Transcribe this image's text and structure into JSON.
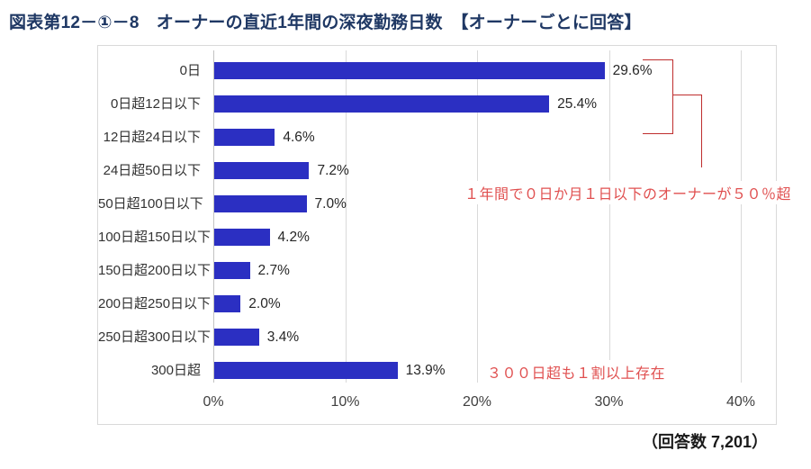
{
  "title": "図表第12－①－8　オーナーの直近1年間の深夜勤務日数　【オーナーごとに回答】",
  "footer": {
    "respondents": "（回答数 7,201）"
  },
  "annotations": {
    "bracket_note": "１年間で０日か月１日以下のオーナーが５０％超",
    "bottom_note": "３００日超も１割以上存在"
  },
  "colors": {
    "bar": "#2b2fc2",
    "title": "#1f3864",
    "annotation": "#e05050",
    "bracket_line": "#be2d2d",
    "grid": "#d9d9d9",
    "axis": "#c2c2c2"
  },
  "chart_data": {
    "type": "bar",
    "orientation": "horizontal",
    "title": "オーナーの直近1年間の深夜勤務日数",
    "categories": [
      "0日",
      "0日超12日以下",
      "12日超24日以下",
      "24日超50日以下",
      "50日超100日以下",
      "100日超150日以下",
      "150日超200日以下",
      "200日超250日以下",
      "250日超300日以下",
      "300日超"
    ],
    "values": [
      29.6,
      25.4,
      4.6,
      7.2,
      7.0,
      4.2,
      2.7,
      2.0,
      3.4,
      13.9
    ],
    "value_labels": [
      "29.6%",
      "25.4%",
      "4.6%",
      "7.2%",
      "7.0%",
      "4.2%",
      "2.7%",
      "2.0%",
      "3.4%",
      "13.9%"
    ],
    "x_ticks": [
      "0%",
      "10%",
      "20%",
      "30%",
      "40%"
    ],
    "xlim": [
      0,
      40
    ],
    "grid": true,
    "legend": false
  }
}
